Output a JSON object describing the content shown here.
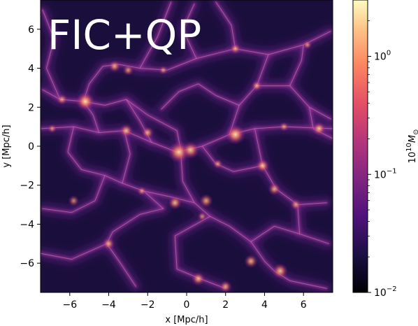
{
  "chart_data": {
    "type": "heatmap",
    "title": "FIC+QP",
    "xlabel": "x [Mpc/h]",
    "ylabel": "y [Mpc/h]",
    "xlim": [
      -7.5,
      7.5
    ],
    "ylim": [
      -7.5,
      7.5
    ],
    "xticks": [
      -6,
      -4,
      -2,
      0,
      2,
      4,
      6
    ],
    "yticks": [
      -6,
      -4,
      -2,
      0,
      2,
      4,
      6
    ],
    "xtick_labels": [
      "−6",
      "−4",
      "−2",
      "0",
      "2",
      "4",
      "6"
    ],
    "ytick_labels": [
      "−6",
      "−4",
      "−2",
      "0",
      "2",
      "4",
      "6"
    ],
    "colormap": "magma",
    "color_scale": "log",
    "colorbar": {
      "label": "10^10 M_sun",
      "label_base": "10",
      "label_exp": "10",
      "label_symbol": "M",
      "label_sub": "⊙",
      "range": [
        0.01,
        3.0
      ],
      "ticks": [
        {
          "value": 0.01,
          "base": "10",
          "exp": "−2"
        },
        {
          "value": 0.1,
          "base": "10",
          "exp": "−1"
        },
        {
          "value": 1,
          "base": "10",
          "exp": "0"
        }
      ]
    },
    "grid": false,
    "filaments": [
      [
        [
          -7.5,
          0.9
        ],
        [
          -5.8,
          1.0
        ],
        [
          -4.5,
          0.7
        ],
        [
          -3.2,
          0.8
        ],
        [
          -1.8,
          0.2
        ],
        [
          -0.5,
          -0.3
        ],
        [
          0.8,
          0.0
        ],
        [
          2.2,
          0.6
        ],
        [
          3.5,
          0.9
        ],
        [
          5.0,
          1.0
        ],
        [
          7.5,
          0.9
        ]
      ],
      [
        [
          -7.4,
          2.9
        ],
        [
          -6.5,
          2.4
        ],
        [
          -5.3,
          2.3
        ],
        [
          -4.2,
          2.1
        ],
        [
          -3.1,
          2.4
        ],
        [
          -2.0,
          1.6
        ],
        [
          -0.5,
          0.8
        ],
        [
          -0.3,
          -0.2
        ]
      ],
      [
        [
          -5.3,
          2.3
        ],
        [
          -5.0,
          3.2
        ],
        [
          -4.3,
          4.1
        ],
        [
          -3.5,
          4.2
        ],
        [
          -2.4,
          4.0
        ],
        [
          -1.0,
          3.9
        ],
        [
          0.5,
          4.5
        ],
        [
          2.5,
          5.0
        ],
        [
          4.2,
          4.7
        ],
        [
          6.0,
          5.2
        ],
        [
          7.4,
          5.9
        ]
      ],
      [
        [
          -0.3,
          -0.3
        ],
        [
          -0.2,
          -1.8
        ],
        [
          0.4,
          -2.9
        ],
        [
          1.2,
          -3.6
        ],
        [
          2.2,
          -4.1
        ],
        [
          3.3,
          -4.9
        ],
        [
          4.0,
          -5.9
        ],
        [
          4.5,
          -6.4
        ],
        [
          5.3,
          -6.9
        ],
        [
          7.2,
          -7.3
        ]
      ],
      [
        [
          -1.2,
          -3.2
        ],
        [
          -2.4,
          -3.5
        ],
        [
          -3.8,
          -4.4
        ],
        [
          -4.1,
          -5.0
        ],
        [
          -3.4,
          -6.0
        ],
        [
          -2.6,
          -7.2
        ]
      ],
      [
        [
          1.2,
          -3.6
        ],
        [
          -0.6,
          -4.6
        ],
        [
          -0.5,
          -6.3
        ],
        [
          0.7,
          -6.8
        ],
        [
          2.0,
          -7.3
        ]
      ],
      [
        [
          3.5,
          0.9
        ],
        [
          3.9,
          -1.0
        ],
        [
          4.6,
          -2.2
        ],
        [
          5.7,
          -3.0
        ],
        [
          7.2,
          -2.9
        ]
      ],
      [
        [
          2.2,
          0.6
        ],
        [
          2.7,
          2.1
        ],
        [
          3.6,
          3.1
        ],
        [
          5.3,
          3.1
        ],
        [
          6.3,
          2.0
        ],
        [
          7.4,
          1.4
        ]
      ],
      [
        [
          2.7,
          2.1
        ],
        [
          1.5,
          2.6
        ],
        [
          0.6,
          3.2
        ],
        [
          -0.4,
          2.8
        ],
        [
          -1.3,
          1.9
        ]
      ],
      [
        [
          -5.8,
          1.0
        ],
        [
          -6.1,
          -0.3
        ],
        [
          -5.4,
          -1.2
        ],
        [
          -4.2,
          -1.5
        ],
        [
          -3.3,
          -1.9
        ],
        [
          -2.2,
          -2.3
        ],
        [
          -1.2,
          -3.2
        ]
      ],
      [
        [
          -4.2,
          -1.5
        ],
        [
          -4.7,
          -2.8
        ],
        [
          -5.9,
          -3.4
        ],
        [
          -7.4,
          -3.2
        ]
      ],
      [
        [
          -3.3,
          -1.9
        ],
        [
          -2.9,
          -0.4
        ],
        [
          -3.2,
          0.8
        ]
      ],
      [
        [
          -4.5,
          0.7
        ],
        [
          -4.8,
          1.6
        ],
        [
          -5.3,
          2.3
        ]
      ],
      [
        [
          0.8,
          0.0
        ],
        [
          1.5,
          -0.9
        ],
        [
          2.4,
          -1.3
        ],
        [
          3.9,
          -1.0
        ]
      ],
      [
        [
          3.3,
          -4.9
        ],
        [
          4.5,
          -4.1
        ],
        [
          5.8,
          -4.5
        ],
        [
          7.3,
          -5.0
        ]
      ],
      [
        [
          -2.4,
          4.0
        ],
        [
          -1.5,
          5.6
        ],
        [
          -0.8,
          7.4
        ]
      ],
      [
        [
          2.5,
          5.0
        ],
        [
          2.3,
          6.2
        ],
        [
          1.5,
          7.4
        ]
      ],
      [
        [
          4.2,
          4.7
        ],
        [
          3.6,
          3.1
        ]
      ],
      [
        [
          5.7,
          -3.0
        ],
        [
          5.8,
          -4.5
        ]
      ],
      [
        [
          -7.5,
          -5.5
        ],
        [
          -5.9,
          -5.8
        ],
        [
          -4.1,
          -5.0
        ]
      ],
      [
        [
          -1.8,
          0.2
        ],
        [
          -2.4,
          1.3
        ],
        [
          -3.1,
          2.4
        ]
      ],
      [
        [
          0.4,
          -2.9
        ],
        [
          -0.8,
          -2.6
        ],
        [
          -2.2,
          -2.3
        ]
      ],
      [
        [
          6.3,
          2.0
        ],
        [
          6.5,
          0.9
        ],
        [
          7.5,
          0.4
        ]
      ],
      [
        [
          -6.5,
          2.4
        ],
        [
          -7.2,
          4.0
        ],
        [
          -6.8,
          5.5
        ],
        [
          -7.4,
          7.0
        ]
      ],
      [
        [
          0.5,
          4.5
        ],
        [
          -0.2,
          6.0
        ],
        [
          0.4,
          7.3
        ]
      ],
      [
        [
          5.3,
          3.1
        ],
        [
          5.9,
          4.4
        ],
        [
          6.0,
          5.2
        ]
      ]
    ],
    "halos": [
      {
        "x": -5.2,
        "y": 2.3,
        "r": 0.3,
        "level": 0.9
      },
      {
        "x": -0.4,
        "y": -0.3,
        "r": 0.35,
        "level": 0.85
      },
      {
        "x": 0.2,
        "y": -0.2,
        "r": 0.28,
        "level": 0.8
      },
      {
        "x": 2.5,
        "y": 0.6,
        "r": 0.32,
        "level": 0.9
      },
      {
        "x": -3.1,
        "y": 0.8,
        "r": 0.22,
        "level": 0.75
      },
      {
        "x": -2.0,
        "y": 0.7,
        "r": 0.2,
        "level": 0.7
      },
      {
        "x": 1.0,
        "y": -2.8,
        "r": 0.22,
        "level": 0.72
      },
      {
        "x": -0.6,
        "y": -2.9,
        "r": 0.22,
        "level": 0.78
      },
      {
        "x": 4.5,
        "y": -2.2,
        "r": 0.2,
        "level": 0.7
      },
      {
        "x": 6.8,
        "y": 0.9,
        "r": 0.22,
        "level": 0.8
      },
      {
        "x": 4.8,
        "y": -6.4,
        "r": 0.25,
        "level": 0.8
      },
      {
        "x": 3.3,
        "y": -5.9,
        "r": 0.22,
        "level": 0.75
      },
      {
        "x": -3.7,
        "y": 4.1,
        "r": 0.2,
        "level": 0.7
      },
      {
        "x": -3.0,
        "y": 3.9,
        "r": 0.18,
        "level": 0.65
      },
      {
        "x": 2.5,
        "y": 5.0,
        "r": 0.18,
        "level": 0.65
      },
      {
        "x": 3.9,
        "y": -1.0,
        "r": 0.22,
        "level": 0.8
      },
      {
        "x": -4.0,
        "y": -5.0,
        "r": 0.2,
        "level": 0.7
      },
      {
        "x": 3.6,
        "y": 3.1,
        "r": 0.18,
        "level": 0.65
      },
      {
        "x": -5.8,
        "y": -2.8,
        "r": 0.18,
        "level": 0.6
      },
      {
        "x": 0.6,
        "y": -6.8,
        "r": 0.22,
        "level": 0.75
      },
      {
        "x": 2.0,
        "y": -7.2,
        "r": 0.2,
        "level": 0.7
      },
      {
        "x": -6.4,
        "y": 2.4,
        "r": 0.18,
        "level": 0.65
      },
      {
        "x": 5.6,
        "y": -3.0,
        "r": 0.18,
        "level": 0.62
      },
      {
        "x": 6.2,
        "y": 5.2,
        "r": 0.15,
        "level": 0.6
      },
      {
        "x": -1.2,
        "y": 3.9,
        "r": 0.15,
        "level": 0.58
      },
      {
        "x": 1.6,
        "y": -0.9,
        "r": 0.16,
        "level": 0.6
      },
      {
        "x": -2.3,
        "y": -2.3,
        "r": 0.15,
        "level": 0.6
      },
      {
        "x": 5.0,
        "y": 1.0,
        "r": 0.16,
        "level": 0.62
      },
      {
        "x": -6.9,
        "y": 0.9,
        "r": 0.15,
        "level": 0.58
      },
      {
        "x": 0.8,
        "y": -3.6,
        "r": 0.15,
        "level": 0.6
      }
    ]
  }
}
